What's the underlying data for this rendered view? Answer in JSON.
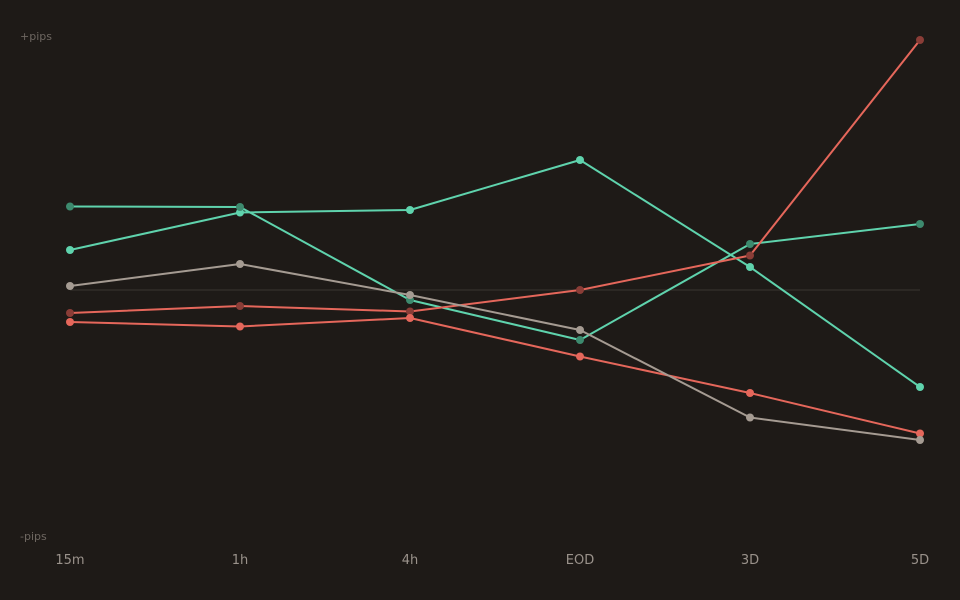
{
  "chart_data": {
    "type": "line",
    "y_top_label": "+pips",
    "y_bottom_label": "-pips",
    "categories": [
      "15m",
      "1h",
      "4h",
      "EOD",
      "3D",
      "5D"
    ],
    "ylim": [
      -50,
      50
    ],
    "grid": false,
    "zero_line": true,
    "series": [
      {
        "color": "#5fd3ad",
        "marker": "#5fd3ad",
        "values": [
          8,
          15.5,
          16,
          26,
          4.6,
          -19.4
        ]
      },
      {
        "color": "#5fd3ad",
        "marker": "#3d8a6e",
        "values": [
          16.7,
          16.6,
          -2,
          -10,
          9.2,
          13.2
        ]
      },
      {
        "color": "#e5675b",
        "marker": "#8a3d37",
        "values": [
          -4.6,
          -3.2,
          -4.3,
          0,
          6.9,
          50
        ]
      },
      {
        "color": "#e5675b",
        "marker": "#e5675b",
        "values": [
          -6.4,
          -7.3,
          -5.6,
          -13.3,
          -20.6,
          -28.7
        ]
      },
      {
        "color": "#a59b92",
        "marker": "#a59b92",
        "values": [
          0.8,
          5.2,
          -1,
          -8,
          -25.5,
          -30
        ]
      }
    ]
  }
}
